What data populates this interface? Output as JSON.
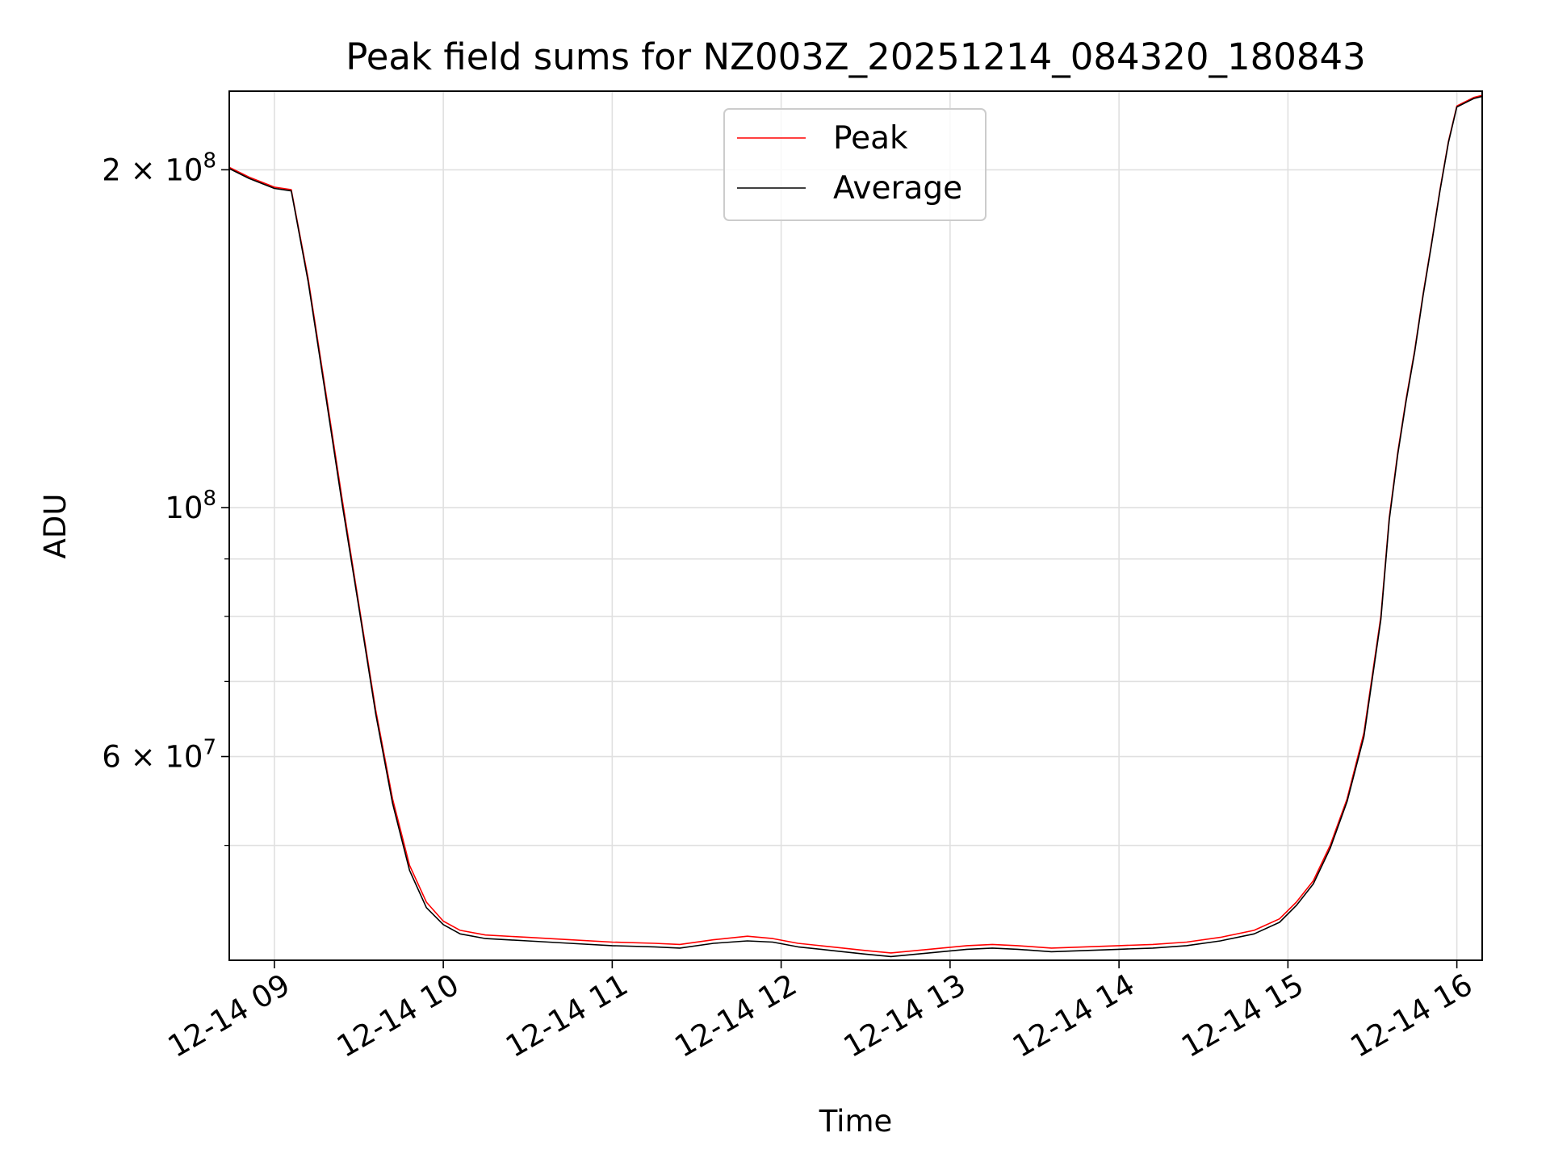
{
  "chart_data": {
    "type": "line",
    "title": "Peak field sums for NZ003Z_20251214_084320_180843",
    "xlabel": "Time",
    "ylabel": "ADU",
    "y_scale": "log",
    "ylim": [
      39500000,
      235000000
    ],
    "xlim_hours": [
      8.733,
      16.15
    ],
    "grid": true,
    "legend": {
      "position": "upper center"
    },
    "x_ticks": [
      {
        "hour": 9,
        "label": "12-14 09"
      },
      {
        "hour": 10,
        "label": "12-14 10"
      },
      {
        "hour": 11,
        "label": "12-14 11"
      },
      {
        "hour": 12,
        "label": "12-14 12"
      },
      {
        "hour": 13,
        "label": "12-14 13"
      },
      {
        "hour": 14,
        "label": "12-14 14"
      },
      {
        "hour": 15,
        "label": "12-14 15"
      },
      {
        "hour": 16,
        "label": "12-14 16"
      }
    ],
    "y_major_ticks": [
      {
        "value": 60000000,
        "mantissa": "6",
        "exponent": "7"
      },
      {
        "value": 100000000,
        "mantissa": "",
        "exponent": "8"
      },
      {
        "value": 200000000,
        "mantissa": "2",
        "exponent": "8"
      }
    ],
    "y_minor_ticks": [
      50000000,
      70000000,
      80000000,
      90000000
    ],
    "series": [
      {
        "name": "Peak",
        "color": "#ff0000",
        "x_hours": [
          8.733,
          8.85,
          9.0,
          9.1,
          9.2,
          9.3,
          9.4,
          9.5,
          9.6,
          9.7,
          9.8,
          9.9,
          10.0,
          10.1,
          10.25,
          10.5,
          10.75,
          11.0,
          11.25,
          11.4,
          11.6,
          11.8,
          11.95,
          12.1,
          12.3,
          12.5,
          12.65,
          12.8,
          12.95,
          13.1,
          13.25,
          13.4,
          13.6,
          13.8,
          14.0,
          14.2,
          14.4,
          14.6,
          14.8,
          14.95,
          15.05,
          15.15,
          15.25,
          15.35,
          15.45,
          15.55,
          15.6,
          15.65,
          15.7,
          15.75,
          15.8,
          15.85,
          15.9,
          15.95,
          16.0,
          16.1,
          16.15
        ],
        "values": [
          201000000,
          197000000,
          193000000,
          192000000,
          160000000,
          128000000,
          102000000,
          82000000,
          66000000,
          55000000,
          48000000,
          44500000,
          42800000,
          42000000,
          41600000,
          41400000,
          41200000,
          41000000,
          40900000,
          40800000,
          41200000,
          41500000,
          41300000,
          40900000,
          40600000,
          40300000,
          40100000,
          40300000,
          40500000,
          40700000,
          40800000,
          40700000,
          40500000,
          40600000,
          40700000,
          40800000,
          41000000,
          41400000,
          42000000,
          43000000,
          44500000,
          46500000,
          50000000,
          55000000,
          63000000,
          80000000,
          98000000,
          112000000,
          125000000,
          138000000,
          155000000,
          172000000,
          192000000,
          212000000,
          228000000,
          232000000,
          233000000
        ]
      },
      {
        "name": "Average",
        "color": "#000000",
        "x_hours": [
          8.733,
          8.85,
          9.0,
          9.1,
          9.2,
          9.3,
          9.4,
          9.5,
          9.6,
          9.7,
          9.8,
          9.9,
          10.0,
          10.1,
          10.25,
          10.5,
          10.75,
          11.0,
          11.25,
          11.4,
          11.6,
          11.8,
          11.95,
          12.1,
          12.3,
          12.5,
          12.65,
          12.8,
          12.95,
          13.1,
          13.25,
          13.4,
          13.6,
          13.8,
          14.0,
          14.2,
          14.4,
          14.6,
          14.8,
          14.95,
          15.05,
          15.15,
          15.25,
          15.35,
          15.45,
          15.55,
          15.6,
          15.65,
          15.7,
          15.75,
          15.8,
          15.85,
          15.9,
          15.95,
          16.0,
          16.1,
          16.15
        ],
        "values": [
          200500000,
          196500000,
          192500000,
          191500000,
          159000000,
          127000000,
          101000000,
          81500000,
          65500000,
          54500000,
          47500000,
          44000000,
          42500000,
          41700000,
          41300000,
          41100000,
          40900000,
          40700000,
          40600000,
          40500000,
          40900000,
          41100000,
          41000000,
          40600000,
          40300000,
          40000000,
          39800000,
          40000000,
          40200000,
          40400000,
          40500000,
          40400000,
          40200000,
          40300000,
          40400000,
          40500000,
          40700000,
          41100000,
          41700000,
          42700000,
          44200000,
          46200000,
          49700000,
          54700000,
          62500000,
          79500000,
          97500000,
          111500000,
          124500000,
          137500000,
          154500000,
          171500000,
          191500000,
          211500000,
          227500000,
          231500000,
          232500000
        ]
      }
    ]
  }
}
